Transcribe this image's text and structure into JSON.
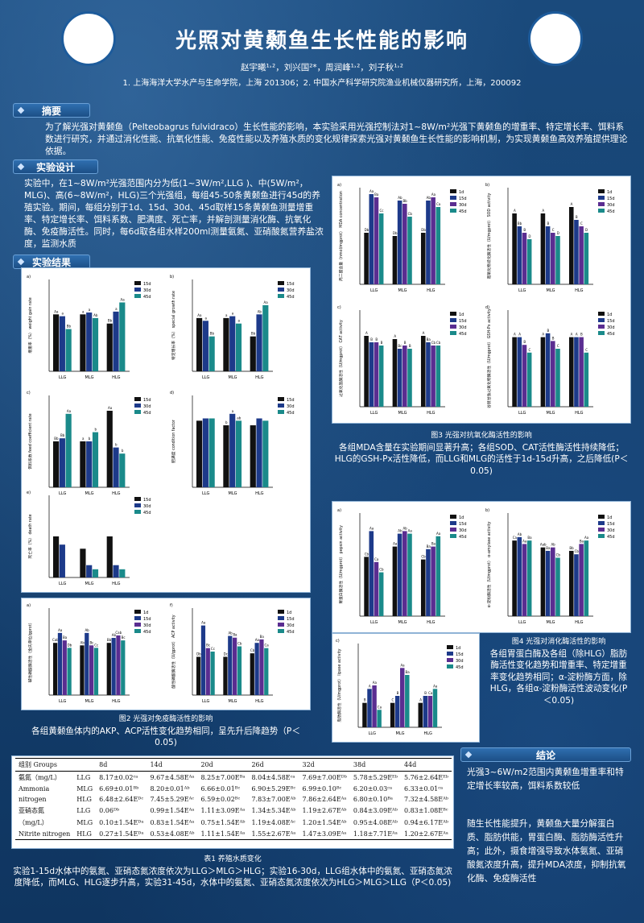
{
  "header": {
    "title": "光照对黄颡鱼生长性能的影响",
    "authors": "赵宇曦¹˒²，刘兴国²*，周润峰¹˒²，刘子秋¹˒²",
    "affiliations": "1. 上海海洋大学水产与生命学院，上海 201306；2. 中国水产科学研究院渔业机械仪器研究所，上海，200092",
    "logo_left": "上海海洋大学 SHANGHAI OCEAN UNIVERSITY 1912",
    "logo_right": "上海海洋大学 SHANGHAI OCEAN UNIVERSITY"
  },
  "sections": {
    "abstract_title": "摘要",
    "abstract_text": "为了解光强对黄颡鱼（Pelteobagrus fulvidraco）生长性能的影响，本实验采用光强控制法对1~8W/m²光强下黄颡鱼的增重率、特定增长率、饵料系数进行研究，并通过消化性能、抗氧化性能、免疫性能以及养殖水质的变化规律探索光强对黄颡鱼生长性能的影响机制，为实现黄颡鱼高效养殖提供理论依据。",
    "design_title": "实验设计",
    "design_text": "实验中，在1~8W/m²光强范围内分为低(1~3W/m²,LLG )、中(5W/m²，MLG)、高(6~8W/m²，HLG)三个光强组，每组45-50条黄颡鱼进行45d的养殖实验。期间，每组分别于1d、15d、30d、45d取样15条黄颡鱼测量增重率、特定增长率、饵料系数、肥满度、死亡率，并解剖测量消化酶、抗氧化酶、免疫酶活性。同时，每6d取各组水样200ml测量氨氮、亚硝酸氮营养盐浓度，监测水质",
    "results_title": "实验结果",
    "conclusion_title": "结论",
    "conclusion_p1": "光强3~6W/m2范围内黄颡鱼增重率和特定增长率较高，饵料系数较低",
    "conclusion_p2": "随生长性能提升，黄颡鱼大量分解蛋白质、脂肪供能，胃蛋白酶、脂肪酶活性升高；此外，摄食增强导致水体氨氮、亚硝酸氮浓度升高，提升MDA浓度，抑制抗氧化酶、免疫酶活性"
  },
  "captions": {
    "fig1_title": "图1 光强对生长性能的影响",
    "fig1_text": "增重率、特定增长率LLG显著降低，HLG显著升高，MLG变化不显著；饵料系数LLG于30d时显著升高，HLG于15d显著降低；肥满度、死亡率各组差异不显著（P＜0.05)",
    "fig2_title": "图2 光强对免疫酶活性的影响",
    "fig2_text": "各组黄颡鱼体内的AKP、ACP活性变化趋势相同，呈先升后降趋势（P＜0.05)",
    "fig3_title": "图3 光强对抗氧化酶活性的影响",
    "fig3_text": "各组MDA含量在实验期间显著升高；各组SOD、CAT活性酶活性持续降低；HLG的GSH-Px活性降低，而LLG和MLG的活性于1d-15d升高，之后降低(P＜0.05)",
    "fig4_title": "图4 光强对消化酶活性的影响",
    "fig4_text": "各组胃蛋白酶及各组（除HLG）脂肪酶活性变化趋势和增重率、特定增重率变化趋势相同；α-淀粉酶方面，除HLG，各组α-淀粉酶活性波动变化(P＜0.05)",
    "table1_title": "表1 养殖水质变化",
    "table1_text": "实验1-15d水体中的氨氮、亚硝态氮浓度依次为LLG＞MLG＞HLG；实验16-30d，LLG组水体中的氨氮、亚硝态氮浓度降低，而MLG、HLG逐步升高，实验31-45d，水体中的氨氮、亚硝态氮浓度依次为HLG＞MLG＞LLG（P＜0.05)"
  },
  "legend_labels": [
    "1d",
    "15d",
    "30d",
    "45d"
  ],
  "series_colors": [
    "#111111",
    "#1d3a8a",
    "#5a2d91",
    "#1a8a8a"
  ],
  "chart_data": [
    {
      "id": "fig1a",
      "type": "bar",
      "label": "a)",
      "ylabel": "增重率（%） weight gain rate",
      "categories": [
        "LLG",
        "MLG",
        "HLG"
      ],
      "series_count": 3,
      "ylim": [
        0,
        100
      ],
      "series": [
        {
          "name": "15d",
          "values": [
            62,
            62,
            52
          ]
        },
        {
          "name": "30d",
          "values": [
            60,
            64,
            65
          ]
        },
        {
          "name": "45d",
          "values": [
            46,
            58,
            75
          ]
        }
      ],
      "labels": [
        [
          "Aa",
          "a",
          "Bb"
        ],
        [
          "a",
          "a",
          "a"
        ],
        [
          "Bb",
          "Ab",
          "Aa"
        ]
      ]
    },
    {
      "id": "fig1b",
      "type": "bar",
      "label": "b)",
      "ylabel": "特定增长率（%） special growth rate",
      "categories": [
        "LLG",
        "MLG",
        "HLG"
      ],
      "series_count": 3,
      "ylim": [
        0,
        1
      ],
      "series": [
        {
          "name": "15d",
          "values": [
            0.58,
            0.58,
            0.38
          ]
        },
        {
          "name": "30d",
          "values": [
            0.55,
            0.6,
            0.62
          ]
        },
        {
          "name": "45d",
          "values": [
            0.38,
            0.52,
            0.72
          ]
        }
      ],
      "labels": [
        [
          "Aa",
          "a",
          "Bb"
        ],
        [
          "a",
          "a",
          "Ab"
        ],
        [
          "Bb",
          "a",
          "Aa"
        ]
      ]
    },
    {
      "id": "fig1c",
      "type": "bar",
      "label": "c)",
      "ylabel": "饵料系数 feed coefficient rate",
      "categories": [
        "LLG",
        "MLG",
        "HLG"
      ],
      "series_count": 3,
      "ylim": [
        0,
        3
      ],
      "series": [
        {
          "name": "15d",
          "values": [
            1.5,
            1.5,
            2.5
          ]
        },
        {
          "name": "30d",
          "values": [
            1.6,
            1.5,
            1.3
          ]
        },
        {
          "name": "45d",
          "values": [
            2.4,
            1.8,
            1.1
          ]
        }
      ],
      "labels": [
        [
          "Bb",
          "a",
          "Aa"
        ],
        [
          "Bb",
          "b",
          "b"
        ],
        [
          "Aa",
          "b",
          "b"
        ]
      ]
    },
    {
      "id": "fig1d",
      "type": "bar",
      "label": "d)",
      "ylabel": "肥满度 condition factor",
      "categories": [
        "LLG",
        "MLG",
        "HLG"
      ],
      "series_count": 3,
      "ylim": [
        0,
        2
      ],
      "series": [
        {
          "name": "15d",
          "values": [
            1.45,
            1.35,
            1.35
          ]
        },
        {
          "name": "30d",
          "values": [
            1.5,
            1.6,
            1.5
          ]
        },
        {
          "name": "45d",
          "values": [
            1.5,
            1.45,
            1.45
          ]
        }
      ],
      "labels": [
        [
          "",
          "b",
          ""
        ],
        [
          "",
          "a",
          ""
        ],
        [
          "",
          "ab",
          ""
        ]
      ]
    },
    {
      "id": "fig1e",
      "type": "bar",
      "label": "e)",
      "ylabel": "死亡率（%） death rate",
      "categories": [
        "LLG",
        "MLG",
        "HLG"
      ],
      "series_count": 3,
      "ylim": [
        0,
        20
      ],
      "series": [
        {
          "name": "15d",
          "values": [
            10,
            7,
            10
          ]
        },
        {
          "name": "30d",
          "values": [
            8,
            3,
            3
          ]
        },
        {
          "name": "45d",
          "values": [
            0,
            2,
            2
          ]
        }
      ],
      "labels": [
        [
          "",
          "",
          ""
        ],
        [
          "",
          "",
          ""
        ],
        [
          "",
          "",
          ""
        ]
      ]
    },
    {
      "id": "fig2a",
      "type": "bar",
      "label": "a)",
      "ylabel": "碱性磷酸酶活性（金氏单位/gprot）",
      "categories": [
        "LLG",
        "MLG",
        "HLG"
      ],
      "series_count": 4,
      "ylim": [
        0,
        35
      ],
      "series": [
        {
          "name": "1d",
          "values": [
            21,
            20,
            21
          ]
        },
        {
          "name": "15d",
          "values": [
            25,
            25,
            23
          ]
        },
        {
          "name": "30d",
          "values": [
            22,
            20,
            24
          ]
        },
        {
          "name": "45d",
          "values": [
            19,
            19,
            22
          ]
        }
      ],
      "labels": [
        [
          "Cab",
          "Ab",
          "Bb"
        ],
        [
          "Aa",
          "Ab",
          "Ab"
        ],
        [
          "Ba",
          "Bc",
          "Cab"
        ],
        [
          "Db",
          "Cc",
          "Bc"
        ]
      ]
    },
    {
      "id": "fig2b",
      "type": "bar",
      "label": "f)",
      "ylabel": "酸性磷酸酶活性（U/gprot） ACP activity",
      "categories": [
        "LLG",
        "MLG",
        "HLG"
      ],
      "series_count": 4,
      "ylim": [
        0,
        0.5
      ],
      "series": [
        {
          "name": "1d",
          "values": [
            0.22,
            0.22,
            0.24
          ]
        },
        {
          "name": "15d",
          "values": [
            0.4,
            0.34,
            0.3
          ]
        },
        {
          "name": "30d",
          "values": [
            0.27,
            0.33,
            0.32
          ]
        },
        {
          "name": "45d",
          "values": [
            0.25,
            0.28,
            0.27
          ]
        }
      ],
      "labels": [
        [
          "Db",
          "Dc",
          "Cb"
        ],
        [
          "Aa",
          "Ab",
          "Aa"
        ],
        [
          "Bc",
          "Ba",
          "Ba"
        ],
        [
          "Cc",
          "Cb",
          "Ca"
        ]
      ]
    },
    {
      "id": "fig3a",
      "type": "bar",
      "label": "a)",
      "ylabel": "丙二醛含量（nmol/mgprot） MDA concentration",
      "categories": [
        "LLG",
        "MLG",
        "HLG"
      ],
      "series_count": 4,
      "ylim": [
        0,
        3
      ],
      "series": [
        {
          "name": "1d",
          "values": [
            1.6,
            1.5,
            1.6
          ]
        },
        {
          "name": "15d",
          "values": [
            2.8,
            2.6,
            2.6
          ]
        },
        {
          "name": "30d",
          "values": [
            2.7,
            2.5,
            2.7
          ]
        },
        {
          "name": "45d",
          "values": [
            2.2,
            2.1,
            2.4
          ]
        }
      ],
      "labels": [
        [
          "Db",
          "Db",
          "Db"
        ],
        [
          "Aa",
          "Ab",
          "Ab"
        ],
        [
          "Ba",
          "Bb",
          "Aa"
        ],
        [
          "Cc",
          "Cb",
          "Ca"
        ]
      ]
    },
    {
      "id": "fig3b",
      "type": "bar",
      "label": "b)",
      "ylabel": "超氧化物歧化酶活性（U/mgprot） SOD activity",
      "categories": [
        "LLG",
        "MLG",
        "HLG"
      ],
      "series_count": 4,
      "ylim": [
        0,
        30
      ],
      "series": [
        {
          "name": "1d",
          "values": [
            22,
            22,
            24
          ]
        },
        {
          "name": "15d",
          "values": [
            18,
            18,
            20
          ]
        },
        {
          "name": "30d",
          "values": [
            16,
            16,
            18
          ]
        },
        {
          "name": "45d",
          "values": [
            14,
            15,
            16
          ]
        }
      ],
      "labels": [
        [
          "A",
          "A",
          "A"
        ],
        [
          "Bb",
          "B",
          "B"
        ],
        [
          "B",
          "C",
          "C"
        ],
        [
          "D",
          "D",
          "D"
        ]
      ]
    },
    {
      "id": "fig3c",
      "type": "bar",
      "label": "c)",
      "ylabel": "过氧化氢酶活性（U/mgprot） CAT activity",
      "categories": [
        "LLG",
        "MLG",
        "HLG"
      ],
      "series_count": 4,
      "ylim": [
        0,
        30
      ],
      "series": [
        {
          "name": "1d",
          "values": [
            22,
            21,
            22
          ]
        },
        {
          "name": "15d",
          "values": [
            20,
            18,
            20
          ]
        },
        {
          "name": "30d",
          "values": [
            20,
            19,
            19
          ]
        },
        {
          "name": "45d",
          "values": [
            19,
            18,
            19
          ]
        }
      ],
      "labels": [
        [
          "A",
          "A",
          "A"
        ],
        [
          "B",
          "Bc",
          "Ba"
        ],
        [
          "B",
          "B",
          "Cb"
        ],
        [
          "B",
          "B",
          "Cb"
        ]
      ]
    },
    {
      "id": "fig3d",
      "type": "bar",
      "label": "d)",
      "ylabel": "谷胱甘肽过氧化物酶活性（U/mgprot） GSH-Px activity",
      "categories": [
        "LLG",
        "MLG",
        "HLG"
      ],
      "series_count": 4,
      "ylim": [
        0,
        25
      ],
      "series": [
        {
          "name": "1d",
          "values": [
            18,
            18,
            18
          ]
        },
        {
          "name": "15d",
          "values": [
            18,
            19,
            18
          ]
        },
        {
          "name": "30d",
          "values": [
            16,
            17,
            18
          ]
        },
        {
          "name": "45d",
          "values": [
            14,
            15,
            14
          ]
        }
      ],
      "labels": [
        [
          "A",
          "A",
          "A"
        ],
        [
          "A",
          "B",
          "A"
        ],
        [
          "B",
          "B",
          "B"
        ],
        [
          "C",
          "C",
          "C"
        ]
      ]
    },
    {
      "id": "fig4a",
      "type": "bar",
      "label": "a)",
      "ylabel": "胃蛋白酶活性（U/mgprot） pepsin activity",
      "categories": [
        "LLG",
        "MLG",
        "HLG"
      ],
      "series_count": 4,
      "ylim": [
        0,
        40
      ],
      "series": [
        {
          "name": "1d",
          "values": [
            23,
            27,
            22
          ]
        },
        {
          "name": "15d",
          "values": [
            33,
            32,
            26
          ]
        },
        {
          "name": "30d",
          "values": [
            21,
            33,
            27
          ]
        },
        {
          "name": "45d",
          "values": [
            17,
            32,
            31
          ]
        }
      ],
      "labels": [
        [
          "Cb",
          "Aa",
          "Cb"
        ],
        [
          "Aa",
          "Ab",
          "Ba"
        ],
        [
          "Ca",
          "Ab",
          "Ba"
        ],
        [
          "Cb",
          "Aa",
          "Aa"
        ]
      ]
    },
    {
      "id": "fig4b",
      "type": "bar",
      "label": "b)",
      "ylabel": "α-淀粉酶活性（U/mgprot） α-amylase activity",
      "categories": [
        "LLG",
        "MLG",
        "HLG"
      ],
      "series_count": 4,
      "ylim": [
        0,
        3
      ],
      "series": [
        {
          "name": "1d",
          "values": [
            2.2,
            2.0,
            1.9
          ]
        },
        {
          "name": "15d",
          "values": [
            2.3,
            1.9,
            1.8
          ]
        },
        {
          "name": "30d",
          "values": [
            2.1,
            2.0,
            2.1
          ]
        },
        {
          "name": "45d",
          "values": [
            2.2,
            1.7,
            2.2
          ]
        }
      ],
      "labels": [
        [
          "Ca",
          "Aab",
          "Bb"
        ],
        [
          "Ab",
          "Ba",
          "Cb"
        ],
        [
          "Aa",
          "Ab",
          "Ba"
        ],
        [
          "Ba",
          "Cb",
          "Aa"
        ]
      ]
    },
    {
      "id": "fig4c",
      "type": "bar",
      "label": "c)",
      "ylabel": "脂肪酶活性（U/mgprot） lipase activity",
      "categories": [
        "LLG",
        "MLG",
        "HLG"
      ],
      "series_count": 4,
      "ylim": [
        0,
        12
      ],
      "series": [
        {
          "name": "1d",
          "values": [
            3.5,
            3.5,
            3.5
          ]
        },
        {
          "name": "15d",
          "values": [
            5.5,
            4.5,
            4.5
          ]
        },
        {
          "name": "30d",
          "values": [
            6,
            8.5,
            4.5
          ]
        },
        {
          "name": "45d",
          "values": [
            2.5,
            7.5,
            5.5
          ]
        }
      ],
      "labels": [
        [
          "B",
          "C",
          "A"
        ],
        [
          "A",
          "B",
          "B"
        ],
        [
          "Aa",
          "Aa",
          "Ca"
        ],
        [
          "Ca",
          "Ba",
          "Aa"
        ]
      ]
    }
  ],
  "table": {
    "headers": [
      "组别 Groups",
      "",
      "8d",
      "14d",
      "20d",
      "26d",
      "32d",
      "38d",
      "44d"
    ],
    "rows": [
      [
        "氨氮（mg/L）",
        "LLG",
        "8.17±0.02ᶜᵃ",
        "9.67±4.58Eᴬᵃ",
        "8.25±7.00Eᴮᵃ",
        "8.04±4.58Eᶜᵃ",
        "7.69±7.00Eᴰᵇ",
        "5.78±5.29Eᴱᵇ",
        "5.76±2.64Eᴱᵇ"
      ],
      [
        "Ammonia",
        "MLG",
        "6.69±0.01ᴮᵇ",
        "8.20±0.01ᴬᵇ",
        "6.66±0.01ᴮᶜ",
        "6.90±5.29Eᴮᶜ",
        "6.99±0.10ᴮᶜ",
        "6.20±0.03ᶜᵃ",
        "6.33±0.01ᶜᵃ"
      ],
      [
        "nitrogen",
        "HLG",
        "6.48±2.64Eᴰᶜ",
        "7.45±5.29Eᴬᶜ",
        "6.59±0.02ᴮᶜ",
        "7.83±7.00Eᴬᵇ",
        "7.86±2.64Eᴬᵃ",
        "6.80±0.10ᴮᵃ",
        "7.32±4.58Eᴬᵇ"
      ],
      [
        "亚硝态氮",
        "LLG",
        "0.06ᴰᵇ",
        "0.99±1.54Eᴬᵃ",
        "1.11±3.09Eᴬᵃ",
        "1.34±5.34Eᴬᵇ",
        "1.19±2.67Eᴬᵇ",
        "0.84±3.09Eᴬᵇ",
        "0.83±1.08Eᴮᶜ"
      ],
      [
        "（mg/L）",
        "MLG",
        "0.10±1.54Eᴰᵃ",
        "0.83±1.54Eᴬᵃ",
        "0.75±1.54Eᴬᵇ",
        "1.19±4.08Eᴬᶜ",
        "1.20±1.54Eᴬᵇ",
        "0.95±4.08Eᴬᵇ",
        "0.94±6.17Eᴬᵇ"
      ],
      [
        "Nitrite nitrogen",
        "HLG",
        "0.27±1.54Eᴰᵃ",
        "0.53±4.08Eᴬᵇ",
        "1.11±1.54Eᴬᵃ",
        "1.55±2.67Eᴬᵃ",
        "1.47±3.09Eᴬᵃ",
        "1.18±7.71Eᴬᵃ",
        "1.20±2.67Eᴬᵃ"
      ]
    ]
  }
}
